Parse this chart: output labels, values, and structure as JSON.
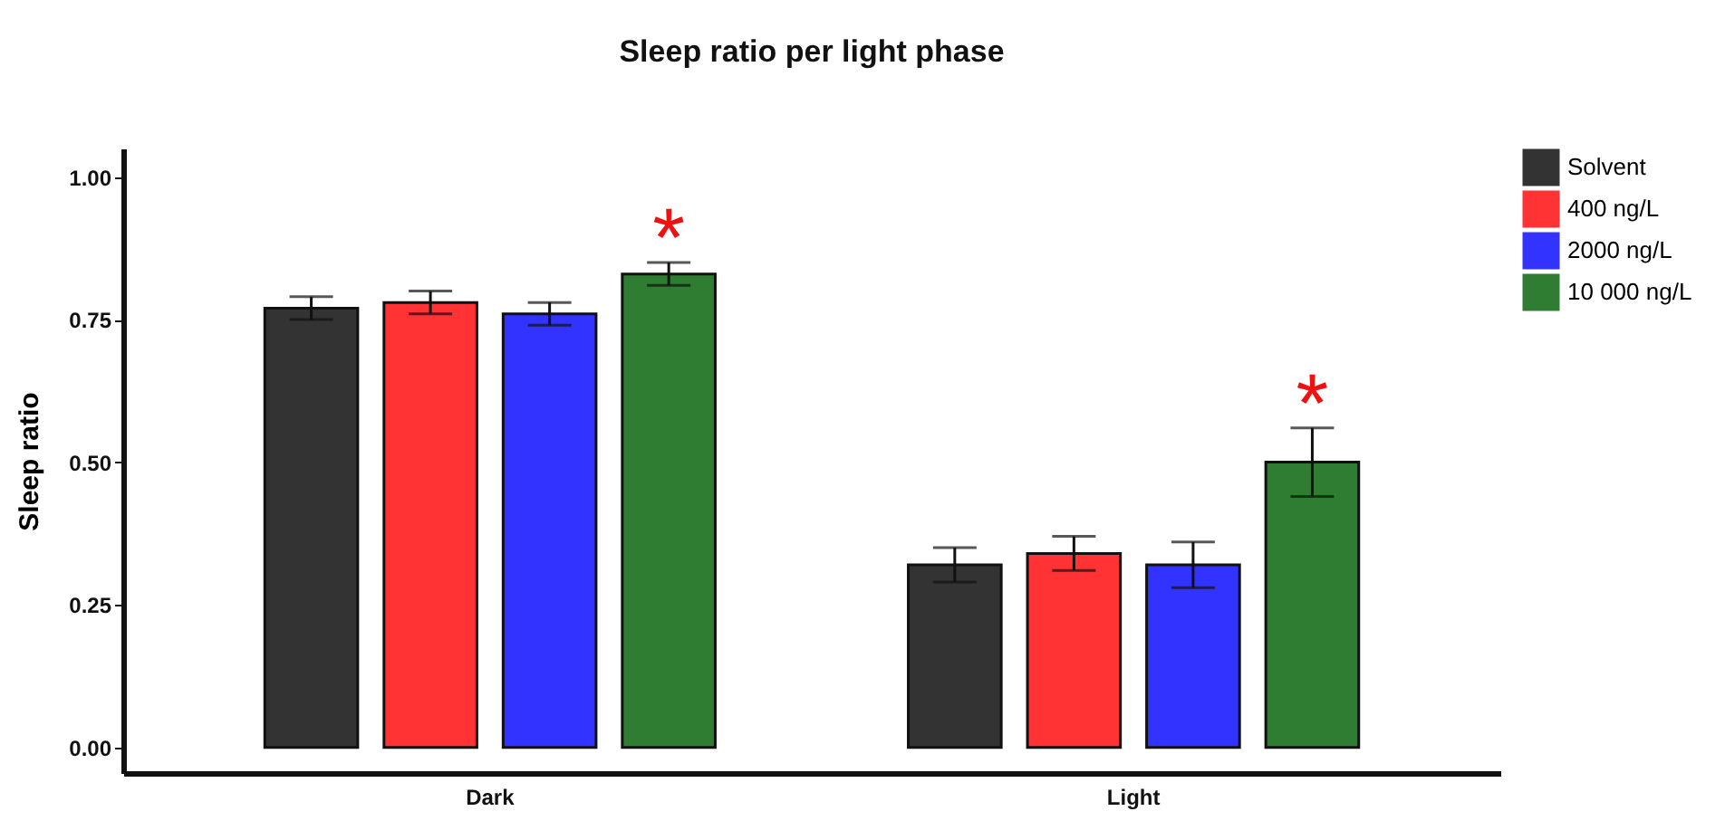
{
  "chart_data": {
    "type": "bar",
    "title": "Sleep ratio per light phase",
    "ylabel": "Sleep ratio",
    "categories": [
      "Dark",
      "Light"
    ],
    "series": [
      {
        "name": "Solvent",
        "color": "#333333",
        "values": [
          0.77,
          0.32
        ],
        "errors": [
          0.02,
          0.03
        ]
      },
      {
        "name": "400 ng/L",
        "color": "#ff3333",
        "values": [
          0.78,
          0.34
        ],
        "errors": [
          0.02,
          0.03
        ]
      },
      {
        "name": "2000 ng/L",
        "color": "#3333ff",
        "values": [
          0.76,
          0.32
        ],
        "errors": [
          0.02,
          0.04
        ]
      },
      {
        "name": "10 000 ng/L",
        "color": "#2e7d32",
        "values": [
          0.83,
          0.5
        ],
        "errors": [
          0.02,
          0.06
        ]
      }
    ],
    "ylim": [
      -0.045,
      1.05
    ],
    "yticks": [
      {
        "value": 0,
        "label": "0.00"
      },
      {
        "value": 0.25,
        "label": "0.25"
      },
      {
        "value": 0.5,
        "label": "0.50"
      },
      {
        "value": 0.75,
        "label": "0.75"
      },
      {
        "value": 1,
        "label": "1.00"
      }
    ],
    "annotations": [
      "*",
      "*"
    ],
    "legend": "right",
    "grid": false
  }
}
